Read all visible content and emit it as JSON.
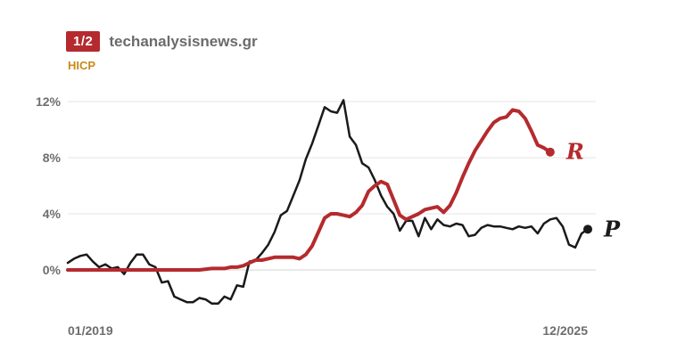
{
  "header": {
    "badge": "1/2",
    "source": "techanalysisnews.gr",
    "subtitle": "HICP"
  },
  "chart_data": {
    "type": "line",
    "title": "",
    "xlabel": "",
    "ylabel": "",
    "ylim": [
      -3,
      12.5
    ],
    "y_ticks": [
      0,
      4,
      8,
      12
    ],
    "y_tick_labels": [
      "0%",
      "4%",
      "8%",
      "12%"
    ],
    "x_tick_labels": [
      "01/2019",
      "12/2025"
    ],
    "grid": true,
    "colors": {
      "R": "#b52a2e",
      "P": "#1a1a1a",
      "grid": "#e6e6e6"
    },
    "series": [
      {
        "name": "R",
        "color": "#b52a2e",
        "points": [
          [
            0,
            0
          ],
          [
            21,
            0
          ],
          [
            23,
            0.1
          ],
          [
            25,
            0.1
          ],
          [
            26,
            0.2
          ],
          [
            27,
            0.2
          ],
          [
            28,
            0.3
          ],
          [
            29,
            0.5
          ],
          [
            30,
            0.7
          ],
          [
            31,
            0.7
          ],
          [
            32,
            0.8
          ],
          [
            33,
            0.9
          ],
          [
            34,
            0.9
          ],
          [
            35,
            0.9
          ],
          [
            36,
            0.9
          ],
          [
            37,
            0.8
          ],
          [
            38,
            1.1
          ],
          [
            39,
            1.7
          ],
          [
            40,
            2.7
          ],
          [
            41,
            3.7
          ],
          [
            42,
            4.0
          ],
          [
            43,
            4.0
          ],
          [
            44,
            3.9
          ],
          [
            45,
            3.8
          ],
          [
            46,
            4.1
          ],
          [
            47,
            4.6
          ],
          [
            48,
            5.6
          ],
          [
            49,
            6.0
          ],
          [
            50,
            6.3
          ],
          [
            51,
            6.1
          ],
          [
            52,
            5.0
          ],
          [
            53,
            3.9
          ],
          [
            54,
            3.6
          ],
          [
            55,
            3.8
          ],
          [
            56,
            4.0
          ],
          [
            57,
            4.3
          ],
          [
            58,
            4.4
          ],
          [
            59,
            4.5
          ],
          [
            60,
            4.1
          ],
          [
            61,
            4.6
          ],
          [
            62,
            5.5
          ],
          [
            63,
            6.6
          ],
          [
            64,
            7.6
          ],
          [
            65,
            8.5
          ],
          [
            66,
            9.2
          ],
          [
            67,
            9.9
          ],
          [
            68,
            10.5
          ],
          [
            69,
            10.8
          ],
          [
            70,
            10.9
          ],
          [
            71,
            11.4
          ],
          [
            72,
            11.3
          ],
          [
            73,
            10.8
          ],
          [
            74,
            9.9
          ],
          [
            75,
            8.9
          ],
          [
            76,
            8.7
          ],
          [
            77,
            8.4
          ]
        ]
      },
      {
        "name": "P",
        "color": "#1a1a1a",
        "points": [
          [
            0,
            0.5
          ],
          [
            1,
            0.8
          ],
          [
            2,
            1.0
          ],
          [
            3,
            1.1
          ],
          [
            4,
            0.6
          ],
          [
            5,
            0.2
          ],
          [
            6,
            0.4
          ],
          [
            7,
            0.1
          ],
          [
            8,
            0.2
          ],
          [
            9,
            -0.3
          ],
          [
            10,
            0.5
          ],
          [
            11,
            1.1
          ],
          [
            12,
            1.1
          ],
          [
            13,
            0.4
          ],
          [
            14,
            0.2
          ],
          [
            15,
            -0.9
          ],
          [
            16,
            -0.8
          ],
          [
            17,
            -1.9
          ],
          [
            18,
            -2.1
          ],
          [
            19,
            -2.3
          ],
          [
            20,
            -2.3
          ],
          [
            21,
            -2.0
          ],
          [
            22,
            -2.1
          ],
          [
            23,
            -2.4
          ],
          [
            24,
            -2.4
          ],
          [
            25,
            -1.9
          ],
          [
            26,
            -2.1
          ],
          [
            27,
            -1.1
          ],
          [
            28,
            -1.2
          ],
          [
            29,
            0.6
          ],
          [
            30,
            0.7
          ],
          [
            31,
            1.2
          ],
          [
            32,
            1.8
          ],
          [
            33,
            2.7
          ],
          [
            34,
            3.9
          ],
          [
            35,
            4.2
          ],
          [
            36,
            5.3
          ],
          [
            37,
            6.4
          ],
          [
            38,
            7.9
          ],
          [
            39,
            9.0
          ],
          [
            40,
            10.3
          ],
          [
            41,
            11.6
          ],
          [
            42,
            11.3
          ],
          [
            43,
            11.2
          ],
          [
            44,
            12.1
          ],
          [
            45,
            9.5
          ],
          [
            46,
            8.9
          ],
          [
            47,
            7.6
          ],
          [
            48,
            7.3
          ],
          [
            49,
            6.4
          ],
          [
            50,
            5.3
          ],
          [
            51,
            4.5
          ],
          [
            52,
            4.0
          ],
          [
            53,
            2.8
          ],
          [
            54,
            3.5
          ],
          [
            55,
            3.5
          ],
          [
            56,
            2.4
          ],
          [
            57,
            3.7
          ],
          [
            58,
            2.9
          ],
          [
            59,
            3.6
          ],
          [
            60,
            3.2
          ],
          [
            61,
            3.1
          ],
          [
            62,
            3.3
          ],
          [
            63,
            3.2
          ],
          [
            64,
            2.4
          ],
          [
            65,
            2.5
          ],
          [
            66,
            3.0
          ],
          [
            67,
            3.2
          ],
          [
            68,
            3.1
          ],
          [
            69,
            3.1
          ],
          [
            70,
            3.0
          ],
          [
            71,
            2.9
          ],
          [
            72,
            3.1
          ],
          [
            73,
            3.0
          ],
          [
            74,
            3.1
          ],
          [
            75,
            2.6
          ],
          [
            76,
            3.3
          ],
          [
            77,
            3.6
          ],
          [
            78,
            3.7
          ],
          [
            79,
            3.1
          ],
          [
            80,
            1.8
          ],
          [
            81,
            1.6
          ],
          [
            82,
            2.6
          ],
          [
            83,
            2.9
          ]
        ]
      }
    ]
  }
}
